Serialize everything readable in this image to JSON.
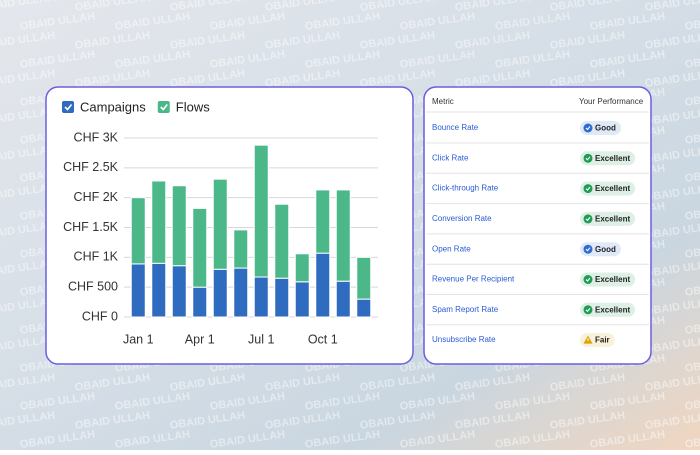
{
  "watermark": "OBAID ULLAH",
  "chart_data": {
    "type": "stacked-bar",
    "legend": [
      "Campaigns",
      "Flows"
    ],
    "categories": [
      "Jan 1",
      null,
      null,
      "Apr 1",
      null,
      null,
      "Jul 1",
      null,
      null,
      "Oct 1",
      null,
      null
    ],
    "series": [
      {
        "name": "Campaigns",
        "color": "#2f6bbf",
        "values": [
          890,
          900,
          860,
          500,
          800,
          820,
          670,
          650,
          590,
          1070,
          600,
          300
        ]
      },
      {
        "name": "Flows",
        "color": "#4cb88a",
        "values": [
          1110,
          1380,
          1340,
          1320,
          1510,
          640,
          2210,
          1240,
          470,
          1060,
          1530,
          700
        ]
      }
    ],
    "ylim": [
      0,
      3000
    ],
    "yticks": [
      {
        "value": 0,
        "label": "CHF 0"
      },
      {
        "value": 500,
        "label": "CHF 500"
      },
      {
        "value": 1000,
        "label": "CHF 1K"
      },
      {
        "value": 1500,
        "label": "CHF 1.5K"
      },
      {
        "value": 2000,
        "label": "CHF 2K"
      },
      {
        "value": 2500,
        "label": "CHF 2.5K"
      },
      {
        "value": 3000,
        "label": "CHF 3K"
      }
    ],
    "grid": true
  },
  "table": {
    "header": [
      "Metric",
      "Your Performance"
    ],
    "rows": [
      {
        "metric": "Bounce Rate",
        "status": "Good",
        "color": "#2f6bd0",
        "icon": "check"
      },
      {
        "metric": "Click Rate",
        "status": "Excellent",
        "color": "#1f9d55",
        "icon": "check"
      },
      {
        "metric": "Click-through Rate",
        "status": "Excellent",
        "color": "#1f9d55",
        "icon": "check"
      },
      {
        "metric": "Conversion Rate",
        "status": "Excellent",
        "color": "#1f9d55",
        "icon": "check"
      },
      {
        "metric": "Open Rate",
        "status": "Good",
        "color": "#2f6bd0",
        "icon": "check"
      },
      {
        "metric": "Revenue Per Recipient",
        "status": "Excellent",
        "color": "#1f9d55",
        "icon": "check"
      },
      {
        "metric": "Spam Report Rate",
        "status": "Excellent",
        "color": "#1f9d55",
        "icon": "check"
      },
      {
        "metric": "Unsubscribe Rate",
        "status": "Fair",
        "color": "#d9a400",
        "icon": "warning"
      }
    ]
  }
}
